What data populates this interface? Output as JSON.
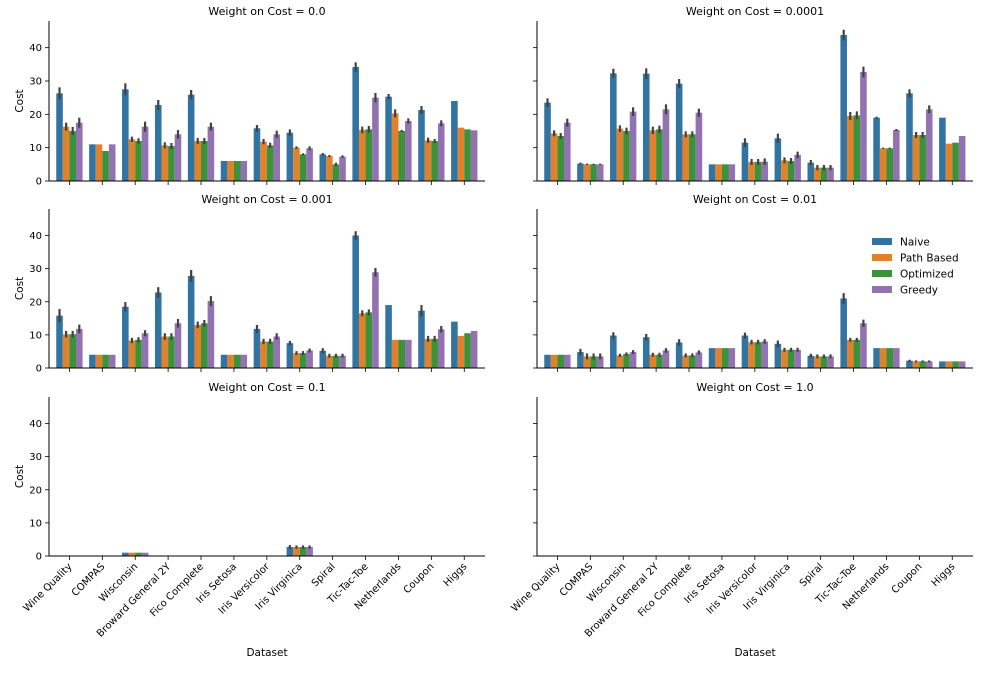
{
  "chart_data": {
    "type": "bar",
    "categories": [
      "Wine Quality",
      "COMPAS",
      "Wisconsin",
      "Broward General 2Y",
      "Fico Complete",
      "Iris Setosa",
      "Iris Versicolor",
      "Iris Virginica",
      "Spiral",
      "Tic-Tac-Toe",
      "Netherlands",
      "Coupon",
      "Higgs"
    ],
    "series_names": [
      "Naive",
      "Path Based",
      "Optimized",
      "Greedy"
    ],
    "colors": [
      "#3274a1",
      "#e1812c",
      "#3a923a",
      "#9372b2"
    ],
    "xlabel": "Dataset",
    "ylabel": "Cost",
    "ylim": [
      0,
      48
    ],
    "yticks": [
      0,
      10,
      20,
      30,
      40
    ],
    "legend": {
      "placement": "right of row 2, right panel",
      "entries": [
        "Naive",
        "Path Based",
        "Optimized",
        "Greedy"
      ]
    },
    "panels": [
      {
        "title": "Weight on Cost = 0.0",
        "series": [
          {
            "name": "Naive",
            "values": [
              26.3,
              11,
              27.5,
              22.8,
              25.9,
              6,
              15.8,
              14.5,
              8,
              34.2,
              25.3,
              21.3,
              24
            ]
          },
          {
            "name": "Path Based",
            "values": [
              16.3,
              11,
              12.5,
              10.7,
              12,
              6,
              11.8,
              10,
              7.5,
              15.3,
              20.3,
              12.2,
              16
            ]
          },
          {
            "name": "Optimized",
            "values": [
              15,
              9,
              12,
              10.5,
              12,
              6,
              10.7,
              8,
              5,
              15.5,
              15,
              12,
              15.5
            ]
          },
          {
            "name": "Greedy",
            "values": [
              17.5,
              11,
              16.3,
              14,
              16.3,
              6,
              14,
              9.8,
              7.3,
              25,
              18,
              17.3,
              15.2
            ]
          }
        ],
        "errors": [
          [
            1.8,
            0,
            1.8,
            1.5,
            1.4,
            0,
            1,
            1,
            0.4,
            1.4,
            0.8,
            1.2,
            0
          ],
          [
            1.2,
            0,
            0.8,
            0.9,
            0.9,
            0,
            0.8,
            0.4,
            0.3,
            1,
            1.2,
            0.8,
            0
          ],
          [
            1.2,
            0,
            0.8,
            0.9,
            0.9,
            0,
            0.8,
            0.3,
            0.5,
            1,
            0.3,
            0.6,
            0
          ],
          [
            1.5,
            0,
            1.5,
            1.3,
            1.2,
            0,
            1.1,
            0.6,
            0.4,
            1.4,
            0.8,
            0.9,
            0
          ]
        ]
      },
      {
        "title": "Weight on Cost = 0.0001",
        "series": [
          {
            "name": "Naive",
            "values": [
              23.5,
              5.2,
              32.3,
              32.2,
              29.2,
              5,
              11.5,
              12.8,
              5.5,
              43.8,
              19,
              26.3,
              19
            ]
          },
          {
            "name": "Path Based",
            "values": [
              14.3,
              5,
              15.7,
              15.2,
              14,
              5,
              5.7,
              6.2,
              4,
              19.5,
              9.8,
              13.8,
              11.2
            ]
          },
          {
            "name": "Optimized",
            "values": [
              13.5,
              5,
              15,
              15.5,
              14,
              5,
              5.7,
              6,
              4,
              19.7,
              9.8,
              13.8,
              11.5
            ]
          },
          {
            "name": "Greedy",
            "values": [
              17.5,
              5,
              20.8,
              21.5,
              20.5,
              5,
              5.8,
              7.8,
              4,
              32.7,
              15.3,
              21.5,
              13.5
            ]
          }
        ],
        "errors": [
          [
            1.3,
            0.3,
            1.4,
            1.6,
            1.4,
            0,
            1.3,
            1.4,
            0.8,
            1.6,
            0.3,
            1.2,
            0
          ],
          [
            0.9,
            0.2,
            1,
            1.1,
            0.9,
            0,
            0.9,
            0.9,
            0.8,
            1.2,
            0.2,
            0.9,
            0
          ],
          [
            0.9,
            0.2,
            1,
            1.1,
            0.9,
            0,
            0.9,
            0.9,
            0.8,
            1.2,
            0.2,
            0.9,
            0
          ],
          [
            1.2,
            0.2,
            1.3,
            1.5,
            1.2,
            0,
            1,
            1,
            0.8,
            1.6,
            0.3,
            1.2,
            0
          ]
        ]
      },
      {
        "title": "Weight on Cost = 0.001",
        "series": [
          {
            "name": "Naive",
            "values": [
              15.8,
              4,
              18.5,
              22.8,
              27.8,
              4,
              11.8,
              7.5,
              5.2,
              40,
              19,
              17.3,
              14
            ]
          },
          {
            "name": "Path Based",
            "values": [
              10.2,
              4,
              8.3,
              9.5,
              13,
              4,
              8,
              4.5,
              3.7,
              16.5,
              8.5,
              8.8,
              9.7
            ]
          },
          {
            "name": "Optimized",
            "values": [
              10.2,
              4,
              8.5,
              9.5,
              13.5,
              4,
              8,
              4.5,
              3.7,
              16.8,
              8.5,
              8.8,
              10.5
            ]
          },
          {
            "name": "Greedy",
            "values": [
              11.8,
              4,
              10.5,
              13.5,
              20.2,
              4,
              9.5,
              5.3,
              3.7,
              28.9,
              8.5,
              11.7,
              11.2
            ]
          }
        ],
        "errors": [
          [
            2,
            0,
            1.4,
            1.6,
            1.8,
            0,
            1.2,
            0.7,
            0.8,
            1.3,
            0,
            1.7,
            0
          ],
          [
            1,
            0,
            0.8,
            1,
            1,
            0,
            0.8,
            0.6,
            0.6,
            0.9,
            0,
            0.9,
            0
          ],
          [
            1,
            0,
            0.8,
            1,
            1,
            0,
            0.8,
            0.6,
            0.6,
            0.9,
            0,
            0.9,
            0
          ],
          [
            1.3,
            0,
            0.9,
            1.3,
            1.5,
            0,
            1,
            0.6,
            0.6,
            1.3,
            0,
            1,
            0
          ]
        ]
      },
      {
        "title": "Weight on Cost = 0.01",
        "series": [
          {
            "name": "Naive",
            "values": [
              4,
              4.8,
              9.8,
              9.3,
              7.7,
              6,
              9.8,
              7.3,
              3.7,
              21,
              6,
              2.2,
              2
            ]
          },
          {
            "name": "Path Based",
            "values": [
              4,
              3.5,
              3.8,
              4,
              3.8,
              6,
              7.8,
              5.5,
              3.5,
              8.5,
              6,
              2,
              2
            ]
          },
          {
            "name": "Optimized",
            "values": [
              4,
              3.5,
              4.2,
              4,
              3.8,
              6,
              7.8,
              5.5,
              3.5,
              8.5,
              6,
              2,
              2
            ]
          },
          {
            "name": "Greedy",
            "values": [
              4,
              3.5,
              4.8,
              5.3,
              4.7,
              6,
              8,
              5.5,
              3.5,
              13.5,
              6,
              2,
              2
            ]
          }
        ],
        "errors": [
          [
            0,
            1,
            1,
            1,
            1,
            0,
            0.9,
            1,
            0.6,
            1.6,
            0,
            0.3,
            0
          ],
          [
            0,
            0.9,
            0.5,
            0.6,
            0.6,
            0,
            0.7,
            0.6,
            0.6,
            0.6,
            0,
            0.3,
            0
          ],
          [
            0,
            0.9,
            0.5,
            0.6,
            0.6,
            0,
            0.7,
            0.6,
            0.6,
            0.6,
            0,
            0.3,
            0
          ],
          [
            0,
            0.9,
            0.6,
            0.7,
            0.6,
            0,
            0.7,
            0.6,
            0.6,
            1.1,
            0,
            0.3,
            0
          ]
        ]
      },
      {
        "title": "Weight on Cost = 0.1",
        "series": [
          {
            "name": "Naive",
            "values": [
              0,
              0,
              1,
              0,
              0,
              0,
              0,
              2.7,
              0,
              0,
              0,
              0,
              0
            ]
          },
          {
            "name": "Path Based",
            "values": [
              0,
              0,
              1,
              0,
              0,
              0,
              0,
              2.7,
              0,
              0,
              0,
              0,
              0
            ]
          },
          {
            "name": "Optimized",
            "values": [
              0,
              0,
              1,
              0,
              0,
              0,
              0,
              2.7,
              0,
              0,
              0,
              0,
              0
            ]
          },
          {
            "name": "Greedy",
            "values": [
              0,
              0,
              1,
              0,
              0,
              0,
              0,
              2.7,
              0,
              0,
              0,
              0,
              0
            ]
          }
        ],
        "errors": [
          [
            0,
            0,
            0,
            0,
            0,
            0,
            0,
            0.6,
            0,
            0,
            0,
            0,
            0
          ],
          [
            0,
            0,
            0,
            0,
            0,
            0,
            0,
            0.5,
            0,
            0,
            0,
            0,
            0
          ],
          [
            0,
            0,
            0,
            0,
            0,
            0,
            0,
            0.5,
            0,
            0,
            0,
            0,
            0
          ],
          [
            0,
            0,
            0,
            0,
            0,
            0,
            0,
            0.5,
            0,
            0,
            0,
            0,
            0
          ]
        ]
      },
      {
        "title": "Weight on Cost = 1.0",
        "series": [
          {
            "name": "Naive",
            "values": [
              0,
              0,
              0,
              0,
              0,
              0,
              0,
              0,
              0,
              0,
              0,
              0,
              0
            ]
          },
          {
            "name": "Path Based",
            "values": [
              0,
              0,
              0,
              0,
              0,
              0,
              0,
              0,
              0,
              0,
              0,
              0,
              0
            ]
          },
          {
            "name": "Optimized",
            "values": [
              0,
              0,
              0,
              0,
              0,
              0,
              0,
              0,
              0,
              0,
              0,
              0,
              0
            ]
          },
          {
            "name": "Greedy",
            "values": [
              0,
              0,
              0,
              0,
              0,
              0,
              0,
              0,
              0,
              0,
              0,
              0,
              0
            ]
          }
        ],
        "errors": [
          [
            0,
            0,
            0,
            0,
            0,
            0,
            0,
            0,
            0,
            0,
            0,
            0,
            0
          ],
          [
            0,
            0,
            0,
            0,
            0,
            0,
            0,
            0,
            0,
            0,
            0,
            0,
            0
          ],
          [
            0,
            0,
            0,
            0,
            0,
            0,
            0,
            0,
            0,
            0,
            0,
            0,
            0
          ],
          [
            0,
            0,
            0,
            0,
            0,
            0,
            0,
            0,
            0,
            0,
            0,
            0,
            0
          ]
        ]
      }
    ]
  }
}
